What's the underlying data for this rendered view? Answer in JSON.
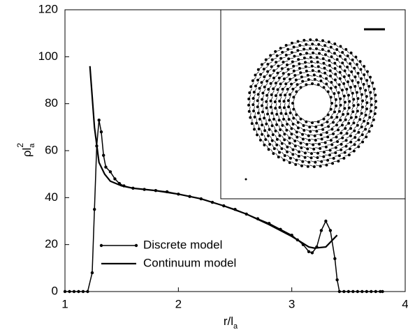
{
  "chart_data": {
    "type": "line",
    "xlabel": {
      "base": "r/l",
      "sub": "a"
    },
    "ylabel": {
      "base": "ρl",
      "sub": "a",
      "sup": "2"
    },
    "xlim": [
      1,
      4
    ],
    "ylim": [
      0,
      120
    ],
    "xticks": [
      1,
      2,
      3,
      4
    ],
    "yticks": [
      0,
      20,
      40,
      60,
      80,
      100,
      120
    ],
    "legend": "lower left",
    "series": [
      {
        "name": "Discrete model",
        "color": "#000000",
        "markers": true,
        "x": [
          1.0,
          1.04,
          1.08,
          1.12,
          1.16,
          1.2,
          1.24,
          1.26,
          1.28,
          1.3,
          1.32,
          1.34,
          1.36,
          1.4,
          1.44,
          1.48,
          1.52,
          1.6,
          1.7,
          1.8,
          1.9,
          2.0,
          2.1,
          2.2,
          2.3,
          2.4,
          2.5,
          2.6,
          2.7,
          2.8,
          2.9,
          3.0,
          3.05,
          3.1,
          3.15,
          3.18,
          3.22,
          3.26,
          3.3,
          3.34,
          3.38,
          3.4,
          3.42,
          3.46,
          3.5,
          3.54,
          3.58,
          3.62,
          3.66,
          3.7,
          3.74,
          3.78,
          3.8
        ],
        "values": [
          0,
          0,
          0,
          0,
          0,
          0,
          8,
          35,
          62,
          73,
          68,
          58,
          53,
          51,
          48,
          46,
          45,
          44,
          43.5,
          43,
          42.5,
          41.5,
          40.5,
          39.5,
          38,
          36.5,
          35,
          33,
          31,
          29,
          26.5,
          24,
          22,
          20,
          17,
          16.5,
          19,
          26,
          30,
          26,
          14,
          5,
          0,
          0,
          0,
          0,
          0,
          0,
          0,
          0,
          0,
          0,
          0
        ]
      },
      {
        "name": "Continuum model",
        "color": "#000000",
        "markers": false,
        "x": [
          1.22,
          1.26,
          1.3,
          1.35,
          1.4,
          1.5,
          1.6,
          1.8,
          2.0,
          2.2,
          2.4,
          2.6,
          2.8,
          3.0,
          3.1,
          3.15,
          3.2,
          3.3,
          3.4
        ],
        "values": [
          96,
          70,
          55,
          50,
          47,
          45,
          44,
          43,
          41.5,
          39.5,
          36.5,
          33,
          28.5,
          23.5,
          20.5,
          19,
          18.5,
          19,
          24
        ]
      }
    ]
  }
}
